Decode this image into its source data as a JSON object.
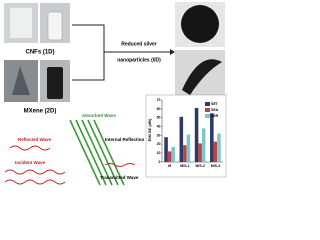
{
  "labels": {
    "cnf": "CNFs (1D)",
    "mxene": "MXene (2D)",
    "silver": [
      "Reduced silver",
      "nanoparticles (0D)"
    ]
  },
  "diagram": {
    "absorbed": "Absorbed Wave",
    "reflected": "Reflected Wave",
    "internal": "Internal Reflection",
    "incident": "Incident Wave",
    "transmitted": "Transmitted Wave"
  },
  "chart_data": {
    "type": "bar",
    "y_label": "EMI SE (dB)",
    "categories": [
      "M",
      "M/S-1",
      "M/S-2",
      "M/S-3"
    ],
    "series": [
      {
        "name": "SET",
        "color": "#2e3a66",
        "values": [
          28,
          51,
          61,
          55
        ]
      },
      {
        "name": "SEA",
        "color": "#c0404a",
        "values": [
          12,
          19,
          21,
          23
        ]
      },
      {
        "name": "SER",
        "color": "#7fc6c8",
        "values": [
          17,
          31,
          38,
          32
        ]
      }
    ],
    "ylim": [
      0,
      70
    ],
    "yticks": [
      0,
      10,
      20,
      30,
      40,
      50,
      60,
      70
    ]
  }
}
